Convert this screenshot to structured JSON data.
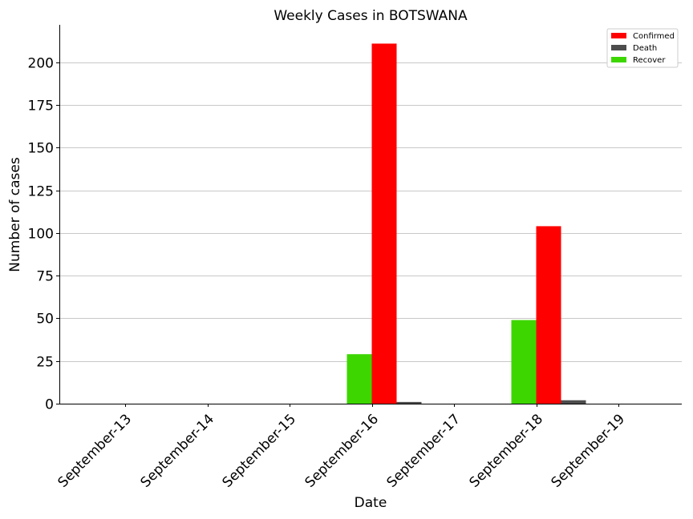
{
  "chart_data": {
    "type": "bar",
    "title": "Weekly Cases in BOTSWANA",
    "xlabel": "Date",
    "ylabel": "Number of cases",
    "categories": [
      "September-13",
      "September-14",
      "September-15",
      "September-16",
      "September-17",
      "September-18",
      "September-19"
    ],
    "ylim": [
      0,
      222
    ],
    "yticks": [
      0,
      25,
      50,
      75,
      100,
      125,
      150,
      175,
      200
    ],
    "grid": true,
    "legend_position": "top-right",
    "series": [
      {
        "name": "Confirmed",
        "color": "#ff0000",
        "values": [
          0,
          0,
          0,
          211,
          0,
          104,
          0
        ]
      },
      {
        "name": "Death",
        "color": "#4d4d4d",
        "values": [
          0,
          0,
          0,
          1,
          0,
          2,
          0
        ]
      },
      {
        "name": "Recover",
        "color": "#3dd600",
        "values": [
          0,
          0,
          0,
          29,
          0,
          49,
          0
        ]
      }
    ]
  }
}
